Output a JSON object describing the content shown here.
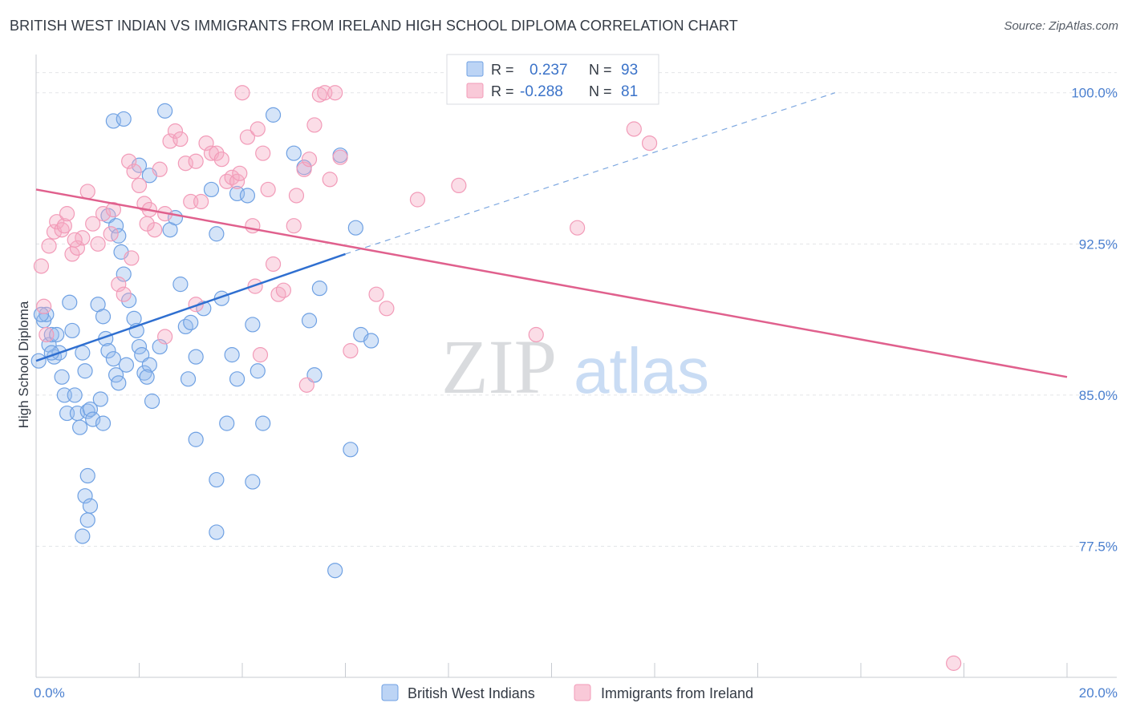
{
  "header": {
    "title": "BRITISH WEST INDIAN VS IMMIGRANTS FROM IRELAND HIGH SCHOOL DIPLOMA CORRELATION CHART",
    "source": "Source: ZipAtlas.com"
  },
  "watermark": {
    "zip": "ZIP",
    "atlas": "atlas"
  },
  "chart_data": {
    "type": "scatter",
    "ylabel": "High School Diploma",
    "xlim": [
      0.0,
      20.0
    ],
    "ylim": [
      71.0,
      101.5
    ],
    "x_tick_labels": [
      {
        "value": 0.0,
        "label": "0.0%"
      },
      {
        "value": 20.0,
        "label": "20.0%"
      }
    ],
    "y_tick_labels": [
      {
        "value": 100.0,
        "label": "100.0%"
      },
      {
        "value": 92.5,
        "label": "92.5%"
      },
      {
        "value": 85.0,
        "label": "85.0%"
      },
      {
        "value": 77.5,
        "label": "77.5%"
      }
    ],
    "grid": true,
    "legend_position": "top-center",
    "stats": [
      {
        "r_label": "R =",
        "r_value": "0.237",
        "n_label": "N =",
        "n_value": "93"
      },
      {
        "r_label": "R =",
        "r_value": "-0.288",
        "n_label": "N =",
        "n_value": "81"
      }
    ],
    "series": [
      {
        "name": "British West Indians",
        "color": "#6fa1e3",
        "line_color": "#2f6fd0",
        "trend": {
          "x_start": 0.0,
          "y_start": 86.7,
          "x_solid_end": 6.0,
          "y_solid_end": 92.0,
          "x_dash_end": 15.5,
          "y_dash_end": 100.0
        },
        "points": [
          [
            0.05,
            86.7
          ],
          [
            0.15,
            88.7
          ],
          [
            0.2,
            89.0
          ],
          [
            0.25,
            87.5
          ],
          [
            0.3,
            88.0
          ],
          [
            0.35,
            86.9
          ],
          [
            0.4,
            88.0
          ],
          [
            0.45,
            87.1
          ],
          [
            0.5,
            85.9
          ],
          [
            0.55,
            85.0
          ],
          [
            0.6,
            84.1
          ],
          [
            0.65,
            89.6
          ],
          [
            0.7,
            88.2
          ],
          [
            0.75,
            85.0
          ],
          [
            0.8,
            84.1
          ],
          [
            0.85,
            83.4
          ],
          [
            0.9,
            87.1
          ],
          [
            0.95,
            86.2
          ],
          [
            1.0,
            84.2
          ],
          [
            1.05,
            84.3
          ],
          [
            1.1,
            83.8
          ],
          [
            1.0,
            81.0
          ],
          [
            0.95,
            80.0
          ],
          [
            1.0,
            78.8
          ],
          [
            0.9,
            78.0
          ],
          [
            1.05,
            79.5
          ],
          [
            1.2,
            89.5
          ],
          [
            1.3,
            88.9
          ],
          [
            1.35,
            87.8
          ],
          [
            1.4,
            87.2
          ],
          [
            1.5,
            86.8
          ],
          [
            1.55,
            86.0
          ],
          [
            1.6,
            85.6
          ],
          [
            1.25,
            84.8
          ],
          [
            1.3,
            83.6
          ],
          [
            1.4,
            93.9
          ],
          [
            1.55,
            93.4
          ],
          [
            1.6,
            92.9
          ],
          [
            1.65,
            92.1
          ],
          [
            1.7,
            91.0
          ],
          [
            1.8,
            89.7
          ],
          [
            1.9,
            88.8
          ],
          [
            1.95,
            88.2
          ],
          [
            2.0,
            87.4
          ],
          [
            2.05,
            87.0
          ],
          [
            2.1,
            86.1
          ],
          [
            2.2,
            86.5
          ],
          [
            2.25,
            84.7
          ],
          [
            1.5,
            98.6
          ],
          [
            1.7,
            98.7
          ],
          [
            2.0,
            96.4
          ],
          [
            2.2,
            95.9
          ],
          [
            2.5,
            99.1
          ],
          [
            2.6,
            93.2
          ],
          [
            2.7,
            93.8
          ],
          [
            2.8,
            90.5
          ],
          [
            2.9,
            88.4
          ],
          [
            3.0,
            88.6
          ],
          [
            3.1,
            86.9
          ],
          [
            2.95,
            85.8
          ],
          [
            3.1,
            82.8
          ],
          [
            3.4,
            95.2
          ],
          [
            3.5,
            93.0
          ],
          [
            3.6,
            89.8
          ],
          [
            3.8,
            87.0
          ],
          [
            3.9,
            85.8
          ],
          [
            3.7,
            83.6
          ],
          [
            3.5,
            80.8
          ],
          [
            3.5,
            78.2
          ],
          [
            3.9,
            95.0
          ],
          [
            4.1,
            94.9
          ],
          [
            4.2,
            88.5
          ],
          [
            4.3,
            86.2
          ],
          [
            4.4,
            83.6
          ],
          [
            4.2,
            80.7
          ],
          [
            4.6,
            98.9
          ],
          [
            5.0,
            97.0
          ],
          [
            5.2,
            96.3
          ],
          [
            5.5,
            90.3
          ],
          [
            5.3,
            88.7
          ],
          [
            5.4,
            86.0
          ],
          [
            5.9,
            96.9
          ],
          [
            6.2,
            93.3
          ],
          [
            6.3,
            88.0
          ],
          [
            6.5,
            87.7
          ],
          [
            6.1,
            82.3
          ],
          [
            5.8,
            76.3
          ],
          [
            0.1,
            89.0
          ],
          [
            0.3,
            87.1
          ],
          [
            2.4,
            87.4
          ],
          [
            1.75,
            86.5
          ],
          [
            2.15,
            85.9
          ],
          [
            3.25,
            89.3
          ]
        ]
      },
      {
        "name": "Immigrants from Ireland",
        "color": "#f29bb8",
        "line_color": "#e0608d",
        "trend": {
          "x_start": 0.0,
          "y_start": 95.2,
          "x_end": 20.0,
          "y_end": 85.9
        },
        "points": [
          [
            0.1,
            91.4
          ],
          [
            0.15,
            89.4
          ],
          [
            0.2,
            88.0
          ],
          [
            0.25,
            92.4
          ],
          [
            0.35,
            93.1
          ],
          [
            0.4,
            93.6
          ],
          [
            0.5,
            93.2
          ],
          [
            0.55,
            93.4
          ],
          [
            0.6,
            94.0
          ],
          [
            0.7,
            92.0
          ],
          [
            0.8,
            92.3
          ],
          [
            0.9,
            92.8
          ],
          [
            1.0,
            95.1
          ],
          [
            1.1,
            93.5
          ],
          [
            1.2,
            92.5
          ],
          [
            1.3,
            94.0
          ],
          [
            1.45,
            93.0
          ],
          [
            1.5,
            94.2
          ],
          [
            1.6,
            90.5
          ],
          [
            1.7,
            90.0
          ],
          [
            1.8,
            96.6
          ],
          [
            1.9,
            96.1
          ],
          [
            2.0,
            95.4
          ],
          [
            2.1,
            94.5
          ],
          [
            2.2,
            94.2
          ],
          [
            2.3,
            93.2
          ],
          [
            2.4,
            96.2
          ],
          [
            2.5,
            94.0
          ],
          [
            2.6,
            97.6
          ],
          [
            2.7,
            98.1
          ],
          [
            2.8,
            97.7
          ],
          [
            2.9,
            96.5
          ],
          [
            3.0,
            94.6
          ],
          [
            3.1,
            96.6
          ],
          [
            3.2,
            94.6
          ],
          [
            3.3,
            97.5
          ],
          [
            3.4,
            97.0
          ],
          [
            3.5,
            97.0
          ],
          [
            3.6,
            96.7
          ],
          [
            3.7,
            95.6
          ],
          [
            3.8,
            95.8
          ],
          [
            3.9,
            95.6
          ],
          [
            4.0,
            100.0
          ],
          [
            4.1,
            97.8
          ],
          [
            4.2,
            93.4
          ],
          [
            4.3,
            98.2
          ],
          [
            4.4,
            97.0
          ],
          [
            4.5,
            95.2
          ],
          [
            4.6,
            91.5
          ],
          [
            4.7,
            90.0
          ],
          [
            4.8,
            90.2
          ],
          [
            5.0,
            93.4
          ],
          [
            5.2,
            96.2
          ],
          [
            5.3,
            96.7
          ],
          [
            5.4,
            98.4
          ],
          [
            5.5,
            99.9
          ],
          [
            5.6,
            100.0
          ],
          [
            5.7,
            95.7
          ],
          [
            5.8,
            100.0
          ],
          [
            5.9,
            96.8
          ],
          [
            6.1,
            87.2
          ],
          [
            7.4,
            94.7
          ],
          [
            8.2,
            95.4
          ],
          [
            6.8,
            89.3
          ],
          [
            9.7,
            88.0
          ],
          [
            10.5,
            93.3
          ],
          [
            11.3,
            100.0
          ],
          [
            11.6,
            98.2
          ],
          [
            11.9,
            97.5
          ],
          [
            17.8,
            71.7
          ],
          [
            2.5,
            87.9
          ],
          [
            3.1,
            89.5
          ],
          [
            4.35,
            87.0
          ],
          [
            5.25,
            85.5
          ],
          [
            6.6,
            90.0
          ],
          [
            3.95,
            96.0
          ],
          [
            2.15,
            93.5
          ],
          [
            1.85,
            91.8
          ],
          [
            0.75,
            92.7
          ],
          [
            4.25,
            90.4
          ],
          [
            5.05,
            94.9
          ]
        ]
      }
    ]
  }
}
